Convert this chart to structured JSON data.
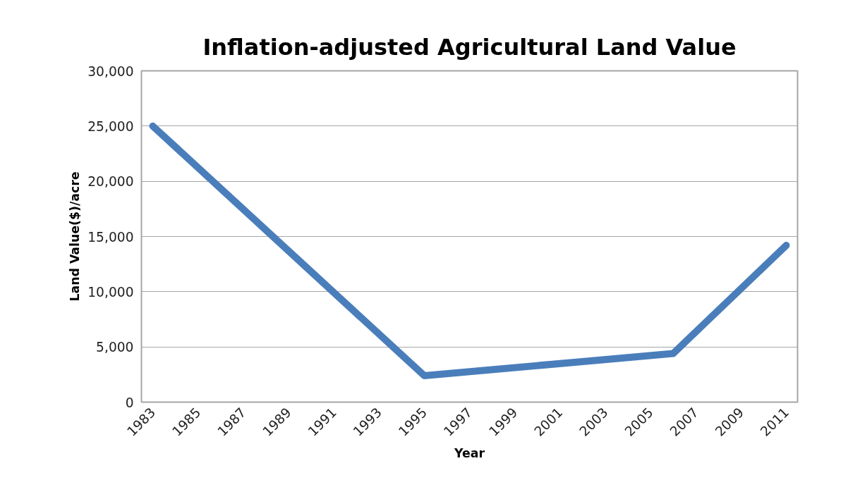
{
  "chart_data": {
    "type": "line",
    "title": "Inflation-adjusted Agricultural Land Value",
    "xlabel": "Year",
    "ylabel": "Land Value($)/acre",
    "x": [
      1983,
      1995,
      2006,
      2011
    ],
    "series": [
      {
        "color": "#4a7ebb",
        "values": [
          25000,
          2400,
          4400,
          14200
        ]
      }
    ],
    "xlim": [
      1982.5,
      2011.5
    ],
    "xticks": [
      1983,
      1985,
      1987,
      1989,
      1991,
      1993,
      1995,
      1997,
      1999,
      2001,
      2003,
      2005,
      2007,
      2009,
      2011
    ],
    "ylim": [
      0,
      30000
    ],
    "yticks": [
      {
        "value": 0,
        "label": "0"
      },
      {
        "value": 5000,
        "label": "5,000"
      },
      {
        "value": 10000,
        "label": "10,000"
      },
      {
        "value": 15000,
        "label": "15,000"
      },
      {
        "value": 20000,
        "label": "20,000"
      },
      {
        "value": 25000,
        "label": "25,000"
      },
      {
        "value": 30000,
        "label": "30,000"
      }
    ],
    "grid": "y",
    "marker": "none",
    "line_style": "solid"
  }
}
